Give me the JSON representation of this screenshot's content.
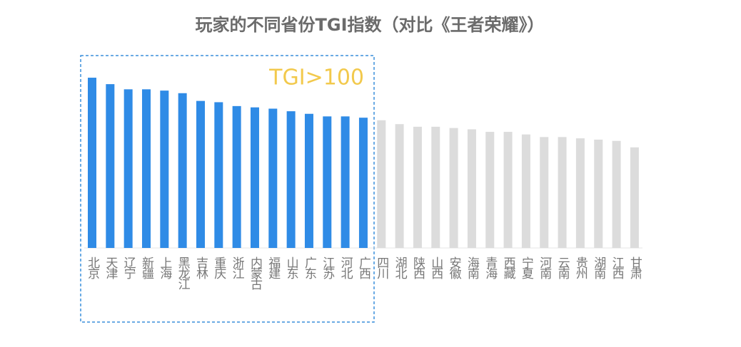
{
  "chart_data": {
    "type": "bar",
    "title": "玩家的不同省份TGI指数（对比《王者荣耀》）",
    "annotation": "TGI>100",
    "categories": [
      "北京",
      "天津",
      "辽宁",
      "新疆",
      "上海",
      "黑龙江",
      "吉林",
      "重庆",
      "浙江",
      "内蒙古",
      "福建",
      "山东",
      "广东",
      "江苏",
      "河北",
      "广西",
      "四川",
      "湖北",
      "陕西",
      "山西",
      "安徽",
      "海南",
      "青海",
      "西藏",
      "宁夏",
      "河南",
      "云南",
      "贵州",
      "湖南",
      "江西",
      "甘肃"
    ],
    "values": [
      132,
      127,
      123,
      123,
      122,
      120,
      114,
      113,
      110,
      109,
      108,
      106,
      104,
      102,
      102,
      101,
      99,
      96,
      94,
      94,
      93,
      92,
      90,
      90,
      88,
      86,
      86,
      85,
      84,
      83,
      78
    ],
    "colors": [
      "#2f8be6",
      "#2f8be6",
      "#2f8be6",
      "#2f8be6",
      "#2f8be6",
      "#2f8be6",
      "#2f8be6",
      "#2f8be6",
      "#2f8be6",
      "#2f8be6",
      "#2f8be6",
      "#2f8be6",
      "#2f8be6",
      "#2f8be6",
      "#2f8be6",
      "#2f8be6",
      "#dcdcdc",
      "#dcdcdc",
      "#dcdcdc",
      "#dcdcdc",
      "#dcdcdc",
      "#dcdcdc",
      "#dcdcdc",
      "#dcdcdc",
      "#dcdcdc",
      "#dcdcdc",
      "#dcdcdc",
      "#dcdcdc",
      "#dcdcdc",
      "#dcdcdc",
      "#dcdcdc"
    ],
    "ylim": [
      0,
      137
    ]
  }
}
